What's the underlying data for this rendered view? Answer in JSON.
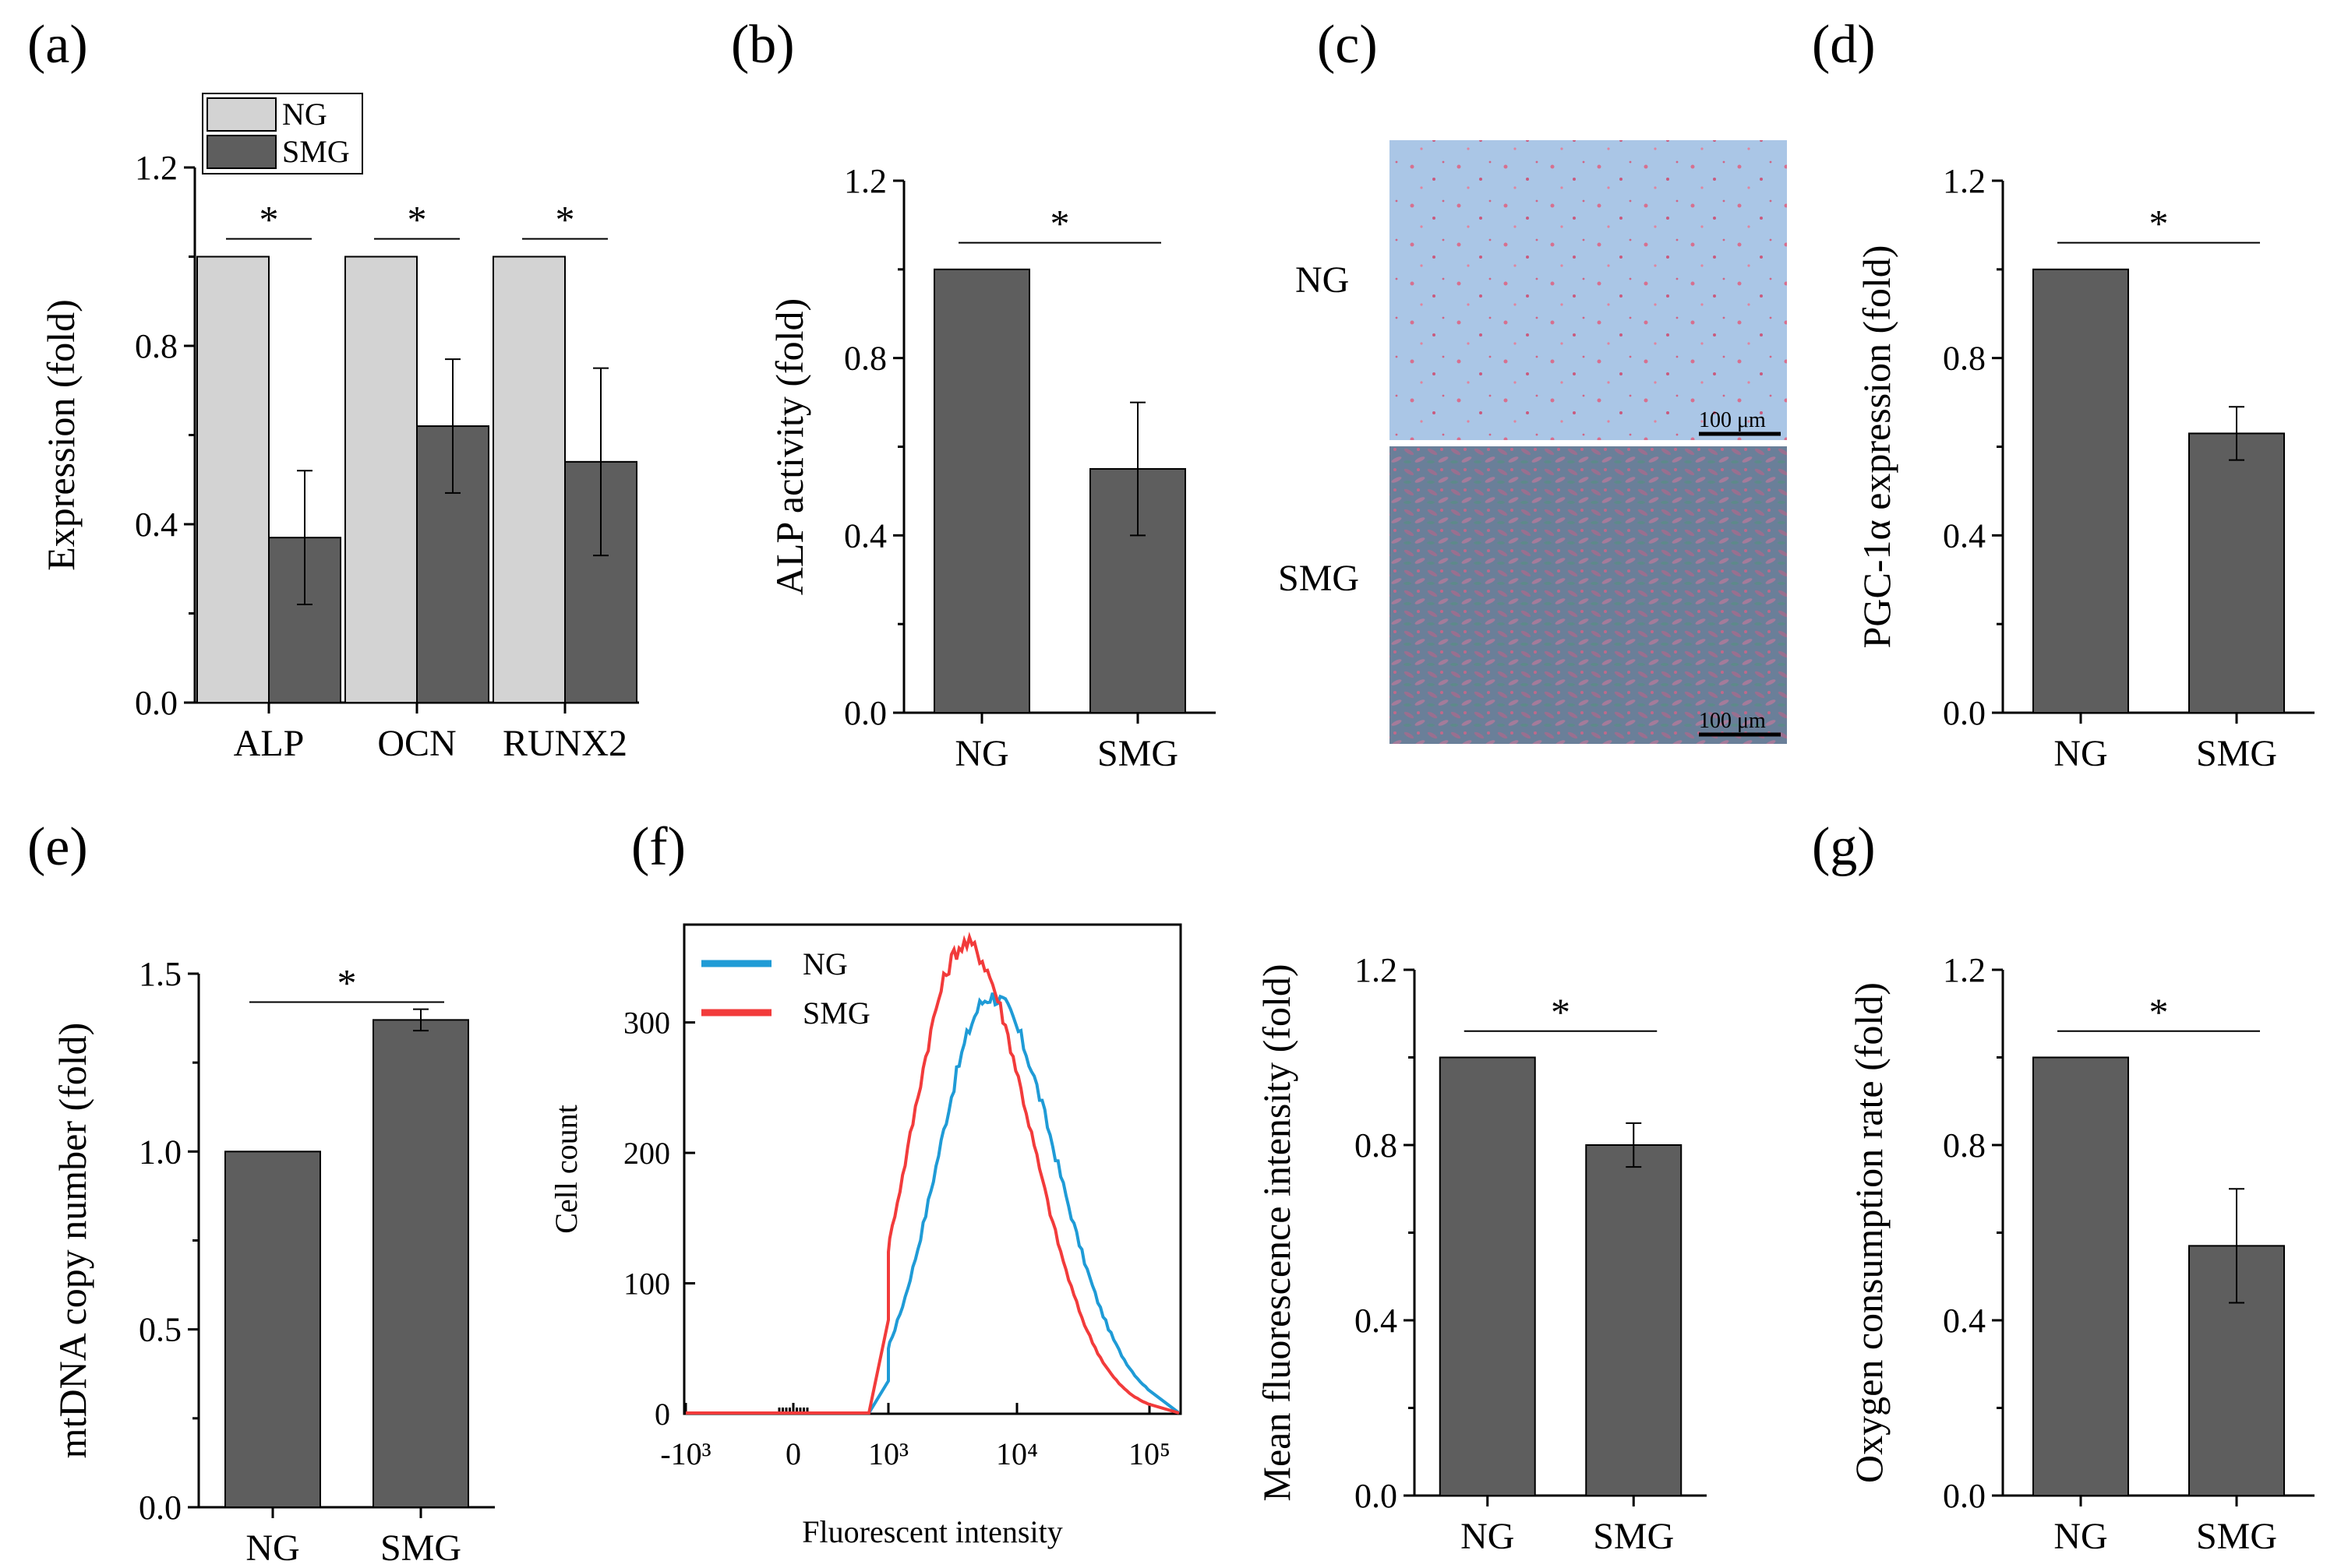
{
  "colors": {
    "light_bar": "#d3d3d3",
    "dark_bar": "#5e5e5e",
    "ng_line": "#1f9bd6",
    "smg_line": "#f23b3b"
  },
  "chart_data": [
    {
      "panel": "(a)",
      "type": "bar",
      "categories": [
        "ALP",
        "OCN",
        "RUNX2"
      ],
      "series": [
        {
          "name": "NG",
          "values": [
            1.0,
            1.0,
            1.0
          ],
          "errors": [
            0,
            0,
            0
          ]
        },
        {
          "name": "SMG",
          "values": [
            0.37,
            0.62,
            0.54
          ],
          "errors": [
            0.15,
            0.15,
            0.21
          ]
        }
      ],
      "significance": [
        "*",
        "*",
        "*"
      ],
      "ylabel": "Expression (fold)",
      "ylim": [
        0,
        1.2
      ],
      "yticks": [
        "0.0",
        "0.4",
        "0.8",
        "1.2"
      ],
      "legend": [
        "NG",
        "SMG"
      ],
      "legend_position": "top-left"
    },
    {
      "panel": "(b)",
      "type": "bar",
      "categories": [
        "NG",
        "SMG"
      ],
      "values": [
        1.0,
        0.55
      ],
      "errors": [
        0,
        0.15
      ],
      "significance": "*",
      "ylabel": "ALP activity (fold)",
      "ylim": [
        0,
        1.2
      ],
      "yticks": [
        "0.0",
        "0.4",
        "0.8",
        "1.2"
      ]
    },
    {
      "panel": "(c)",
      "type": "image",
      "row_labels": [
        "NG",
        "SMG"
      ],
      "scale_bar": "100 μm"
    },
    {
      "panel": "(d)",
      "type": "bar",
      "categories": [
        "NG",
        "SMG"
      ],
      "values": [
        1.0,
        0.63
      ],
      "errors": [
        0,
        0.06
      ],
      "significance": "*",
      "ylabel": "PGC-1α expression (fold)",
      "ylim": [
        0,
        1.2
      ],
      "yticks": [
        "0.0",
        "0.4",
        "0.8",
        "1.2"
      ]
    },
    {
      "panel": "(e)",
      "type": "bar",
      "categories": [
        "NG",
        "SMG"
      ],
      "values": [
        1.0,
        1.37
      ],
      "errors": [
        0,
        0.03
      ],
      "significance": "*",
      "ylabel": "mtDNA copy number (fold)",
      "ylim": [
        0,
        1.5
      ],
      "yticks": [
        "0.0",
        "0.5",
        "1.0",
        "1.5"
      ]
    },
    {
      "panel": "(f)",
      "type": "line",
      "xlabel": "Fluorescent intensity",
      "ylabel": "Cell count",
      "xticks": [
        "-10³",
        "0",
        "10³",
        "10⁴",
        "10⁵"
      ],
      "yticks": [
        "0",
        "100",
        "200",
        "300"
      ],
      "ylim": [
        0,
        375
      ],
      "series": [
        {
          "name": "NG",
          "peak_x_log10": 3.8,
          "peak_count": 320
        },
        {
          "name": "SMG",
          "peak_x_log10": 3.6,
          "peak_count": 360
        }
      ],
      "legend": [
        "NG",
        "SMG"
      ],
      "legend_position": "top-left"
    },
    {
      "panel": "(f) right",
      "type": "bar",
      "categories": [
        "NG",
        "SMG"
      ],
      "values": [
        1.0,
        0.8
      ],
      "errors": [
        0,
        0.05
      ],
      "significance": "*",
      "ylabel": "Mean fluorescence intensity (fold)",
      "ylim": [
        0,
        1.2
      ],
      "yticks": [
        "0.0",
        "0.4",
        "0.8",
        "1.2"
      ]
    },
    {
      "panel": "(g)",
      "type": "bar",
      "categories": [
        "NG",
        "SMG"
      ],
      "values": [
        1.0,
        0.57
      ],
      "errors": [
        0,
        0.13
      ],
      "significance": "*",
      "ylabel": "Oxygen consumption rate (fold)",
      "ylim": [
        0,
        1.2
      ],
      "yticks": [
        "0.0",
        "0.4",
        "0.8",
        "1.2"
      ]
    }
  ]
}
